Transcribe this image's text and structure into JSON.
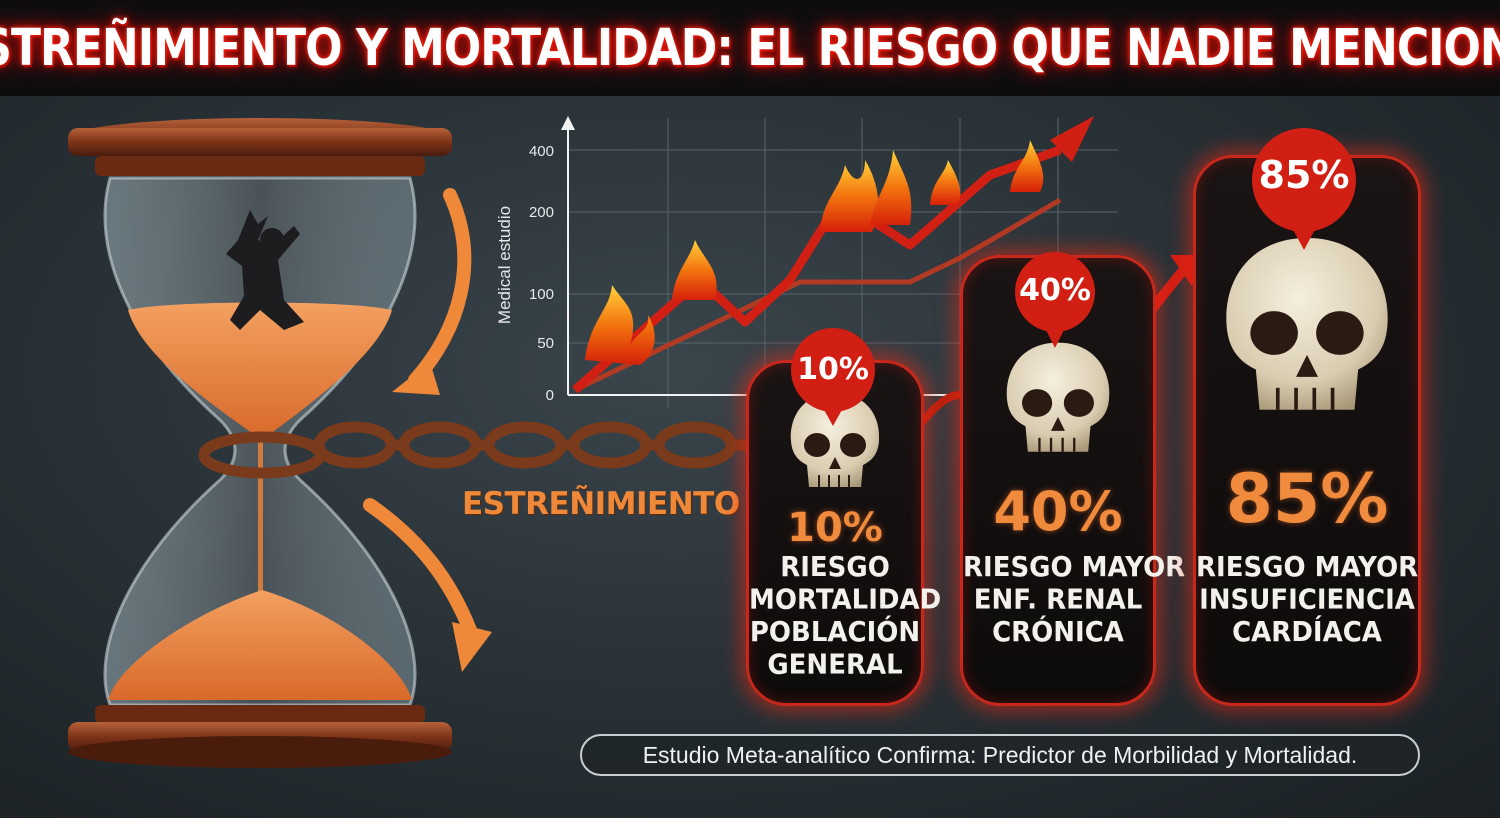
{
  "title": "ESTREÑIMIENTO Y MORTALIDAD: EL RIESGO QUE NADIE MENCIONA",
  "chain_label": "ESTREÑIMIENTO",
  "chart": {
    "ylabel": "Medical estudio",
    "yticks": [
      "400",
      "200",
      "100",
      "50",
      "0"
    ]
  },
  "cards": [
    {
      "bubble": "10%",
      "value": "10%",
      "lines": [
        "RIESGO",
        "MORTALIDAD",
        "POBLACIÓN",
        "GENERAL"
      ]
    },
    {
      "bubble": "40%",
      "value": "40%",
      "lines": [
        "RIESGO MAYOR",
        "ENF. RENAL",
        "CRÓNICA"
      ]
    },
    {
      "bubble": "85%",
      "value": "85%",
      "lines": [
        "RIESGO MAYOR",
        "INSUFICIENCIA",
        "CARDÍACA"
      ]
    }
  ],
  "footer": "Estudio Meta-analítico Confirma: Predictor de Morbilidad y Mortalidad.",
  "colors": {
    "accent_red": "#d21f14",
    "accent_orange": "#f0883a",
    "sand": "#e8823a",
    "wood": "#8a3e20"
  }
}
